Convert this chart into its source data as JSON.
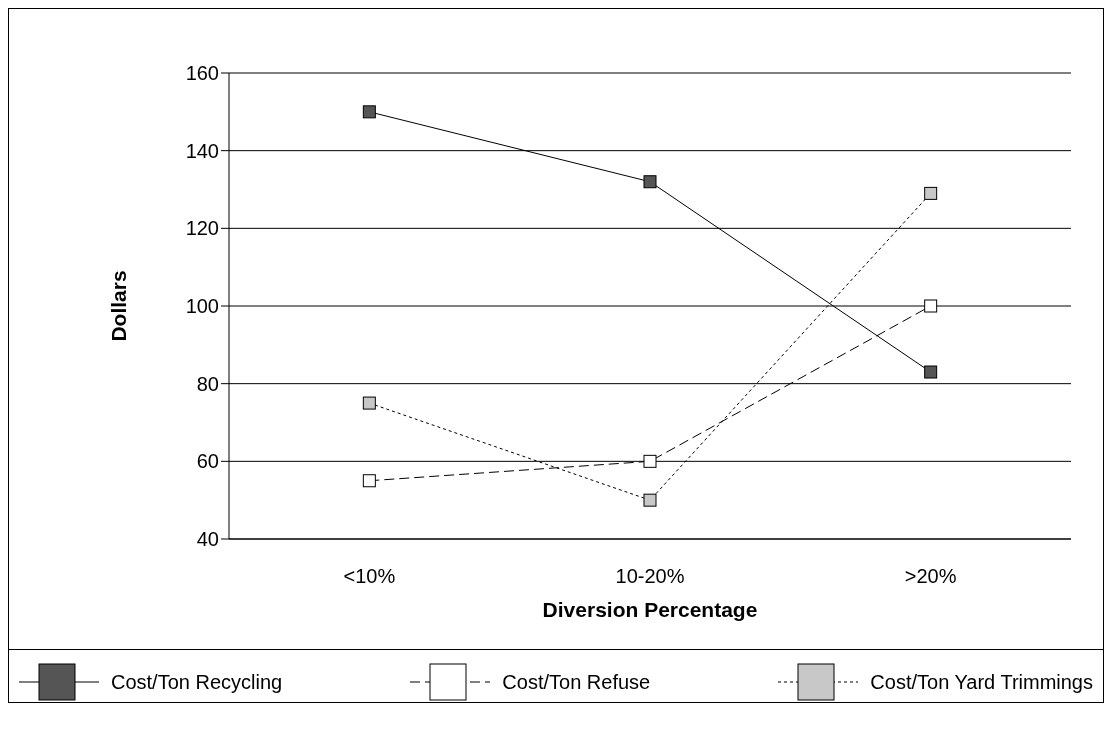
{
  "chart_data": {
    "type": "line",
    "xlabel": "Diversion Percentage",
    "ylabel": "Dollars",
    "categories": [
      "<10%",
      "10-20%",
      ">20%"
    ],
    "series": [
      {
        "name": "Cost/Ton Recycling",
        "color": "#555555",
        "line_style": "solid",
        "values": [
          150,
          132,
          83
        ]
      },
      {
        "name": "Cost/Ton Refuse",
        "color": "#ffffff",
        "line_style": "dashed",
        "values": [
          55,
          60,
          100
        ]
      },
      {
        "name": "Cost/Ton Yard Trimmings",
        "color": "#c8c8c8",
        "line_style": "dotted",
        "values": [
          75,
          50,
          129
        ]
      }
    ],
    "ylim": [
      40,
      160
    ],
    "yticks": [
      40,
      60,
      80,
      100,
      120,
      140,
      160
    ],
    "grid": "y",
    "legend": "bottom",
    "marker": "square"
  }
}
